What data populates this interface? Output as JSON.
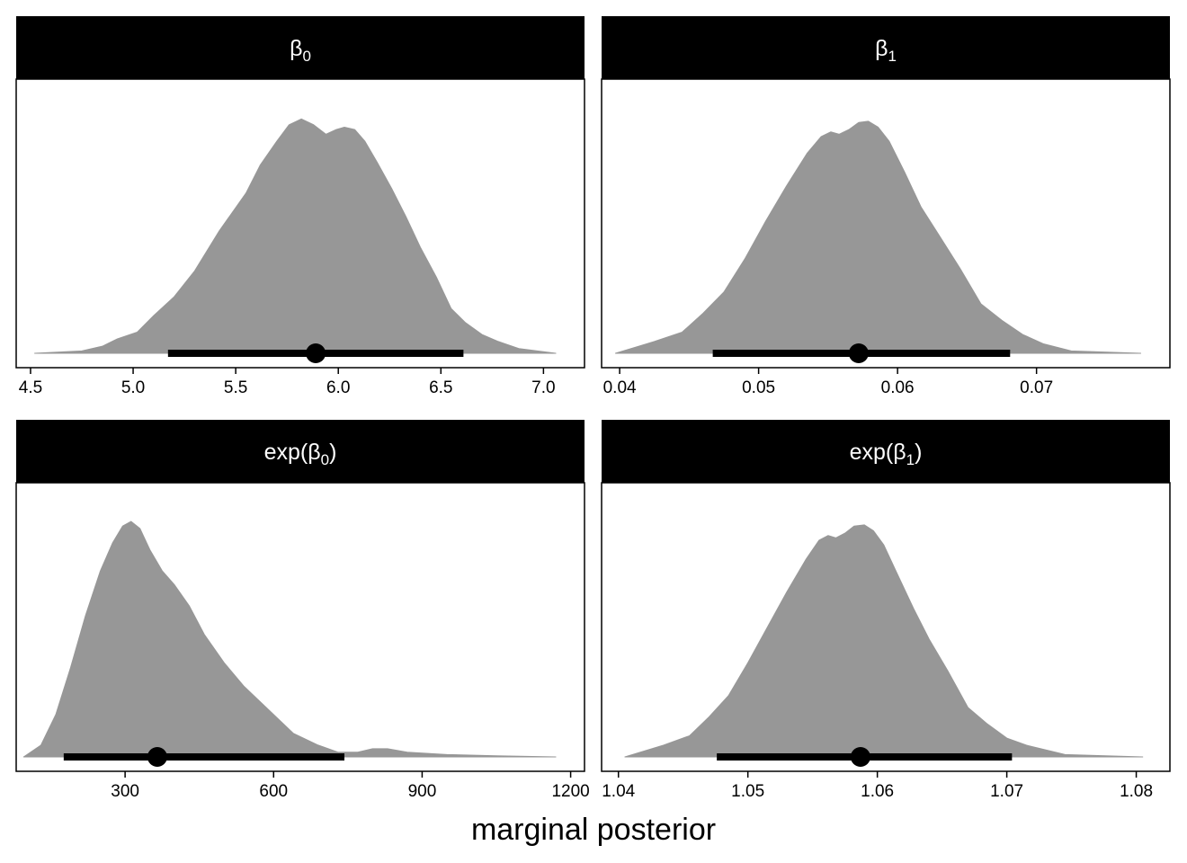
{
  "xlabel": "marginal posterior",
  "colors": {
    "density_fill": "#979797",
    "strip_bg": "#000000",
    "strip_text": "#ffffff",
    "interval": "#000000"
  },
  "chart_data": [
    {
      "type": "area",
      "title": {
        "name": "β",
        "sub": "0"
      },
      "xticks": [
        "4.5",
        "5.0",
        "5.5",
        "6.0",
        "6.5",
        "7.0"
      ],
      "xtick_values": [
        4.5,
        5.0,
        5.5,
        6.0,
        6.5,
        7.0
      ],
      "xlim": [
        4.43,
        7.2
      ],
      "density_x": [
        4.52,
        4.75,
        4.85,
        4.92,
        5.02,
        5.1,
        5.2,
        5.3,
        5.42,
        5.55,
        5.62,
        5.7,
        5.76,
        5.82,
        5.88,
        5.94,
        5.99,
        6.03,
        6.08,
        6.13,
        6.19,
        6.26,
        6.33,
        6.4,
        6.48,
        6.55,
        6.62,
        6.7,
        6.78,
        6.88,
        7.06
      ],
      "density_y": [
        0,
        0.01,
        0.03,
        0.06,
        0.09,
        0.16,
        0.24,
        0.35,
        0.52,
        0.68,
        0.8,
        0.9,
        0.97,
        0.995,
        0.97,
        0.93,
        0.95,
        0.96,
        0.95,
        0.9,
        0.81,
        0.7,
        0.58,
        0.45,
        0.32,
        0.19,
        0.13,
        0.08,
        0.05,
        0.02,
        0
      ],
      "interval": [
        5.17,
        6.61
      ],
      "point": 5.89
    },
    {
      "type": "area",
      "title": {
        "name": "β",
        "sub": "1"
      },
      "xticks": [
        "0.04",
        "0.05",
        "0.06",
        "0.07"
      ],
      "xtick_values": [
        0.04,
        0.05,
        0.06,
        0.07
      ],
      "xlim": [
        0.0387,
        0.0796
      ],
      "density_x": [
        0.0397,
        0.0425,
        0.0445,
        0.046,
        0.0475,
        0.049,
        0.0505,
        0.052,
        0.0535,
        0.0545,
        0.0552,
        0.0558,
        0.0565,
        0.0572,
        0.0579,
        0.0586,
        0.0594,
        0.0605,
        0.0617,
        0.063,
        0.0645,
        0.066,
        0.0675,
        0.069,
        0.0705,
        0.0725,
        0.0775
      ],
      "density_y": [
        0,
        0.05,
        0.09,
        0.17,
        0.26,
        0.4,
        0.56,
        0.71,
        0.85,
        0.92,
        0.94,
        0.93,
        0.95,
        0.98,
        0.985,
        0.96,
        0.9,
        0.77,
        0.62,
        0.5,
        0.36,
        0.21,
        0.14,
        0.08,
        0.04,
        0.01,
        0
      ],
      "interval": [
        0.0467,
        0.0681
      ],
      "point": 0.0572
    },
    {
      "type": "area",
      "title": {
        "name": "exp(β",
        "sub": "0",
        "suffix": ")"
      },
      "xticks": [
        "300",
        "600",
        "900",
        "1200"
      ],
      "xtick_values": [
        300,
        600,
        900,
        1200
      ],
      "xlim": [
        80,
        1228
      ],
      "density_x": [
        95,
        130,
        160,
        190,
        220,
        250,
        275,
        295,
        312,
        330,
        350,
        375,
        400,
        430,
        460,
        500,
        540,
        590,
        640,
        690,
        730,
        770,
        800,
        830,
        870,
        950,
        1050,
        1170
      ],
      "density_y": [
        0,
        0.05,
        0.18,
        0.38,
        0.6,
        0.79,
        0.91,
        0.98,
        1.0,
        0.97,
        0.88,
        0.79,
        0.73,
        0.64,
        0.52,
        0.4,
        0.3,
        0.2,
        0.1,
        0.05,
        0.02,
        0.02,
        0.035,
        0.035,
        0.02,
        0.01,
        0.005,
        0
      ],
      "interval": [
        176,
        743
      ],
      "point": 365
    },
    {
      "type": "area",
      "title": {
        "name": "exp(β",
        "sub": "1",
        "suffix": ")"
      },
      "xticks": [
        "1.04",
        "1.05",
        "1.06",
        "1.07",
        "1.08"
      ],
      "xtick_values": [
        1.04,
        1.05,
        1.06,
        1.07,
        1.08
      ],
      "xlim": [
        1.0387,
        1.0826
      ],
      "density_x": [
        1.0405,
        1.0435,
        1.0455,
        1.047,
        1.0485,
        1.05,
        1.0515,
        1.053,
        1.0545,
        1.0555,
        1.0562,
        1.0568,
        1.0575,
        1.0582,
        1.059,
        1.0597,
        1.0605,
        1.0616,
        1.0628,
        1.064,
        1.0655,
        1.067,
        1.0685,
        1.07,
        1.0715,
        1.0745,
        1.0805
      ],
      "density_y": [
        0,
        0.05,
        0.09,
        0.17,
        0.26,
        0.4,
        0.55,
        0.7,
        0.84,
        0.92,
        0.94,
        0.93,
        0.95,
        0.98,
        0.985,
        0.96,
        0.9,
        0.77,
        0.63,
        0.5,
        0.36,
        0.21,
        0.14,
        0.08,
        0.05,
        0.01,
        0
      ],
      "interval": [
        1.0476,
        1.0704
      ],
      "point": 1.0587
    }
  ]
}
